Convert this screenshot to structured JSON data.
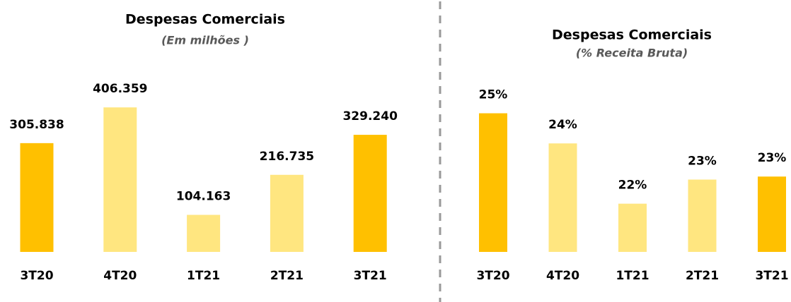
{
  "chart_data": [
    {
      "type": "bar",
      "title": "Despesas Comerciais",
      "subtitle": "(Em milhões )",
      "categories": [
        "3T20",
        "4T20",
        "1T21",
        "2T21",
        "3T21"
      ],
      "values": [
        305838,
        406359,
        104163,
        216735,
        329240
      ],
      "value_labels": [
        "305.838",
        "406.359",
        "104.163",
        "216.735",
        "329.240"
      ],
      "colors": [
        "#FFC000",
        "#FFE680",
        "#FFE680",
        "#FFE680",
        "#FFC000"
      ],
      "ylim": [
        0,
        500000
      ]
    },
    {
      "type": "bar",
      "title": "Despesas Comerciais",
      "subtitle": "(% Receita Bruta)",
      "categories": [
        "3T20",
        "4T20",
        "1T21",
        "2T21",
        "3T21"
      ],
      "values": [
        25,
        24,
        22,
        22.8,
        22.9
      ],
      "value_labels": [
        "25%",
        "24%",
        "22%",
        "23%",
        "23%"
      ],
      "colors": [
        "#FFC000",
        "#FFE680",
        "#FFE680",
        "#FFE680",
        "#FFC000"
      ],
      "ylim": [
        20.4,
        26.3
      ]
    }
  ]
}
